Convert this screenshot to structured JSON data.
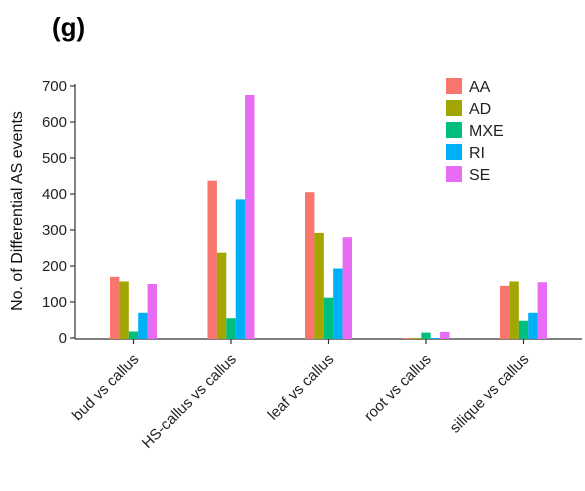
{
  "panel_label": "(g)",
  "chart_data": {
    "type": "bar",
    "title": "",
    "xlabel": "",
    "ylabel": "No. of Differential AS events",
    "ylim": [
      0,
      700
    ],
    "yticks": [
      0,
      100,
      200,
      300,
      400,
      500,
      600,
      700
    ],
    "categories": [
      "bud vs callus",
      "HS-callus vs callus",
      "leaf vs callus",
      "root vs callus",
      "silique vs callus"
    ],
    "series": [
      {
        "name": "AA",
        "color": "#F8766D",
        "values": [
          170,
          437,
          405,
          0,
          145
        ]
      },
      {
        "name": "AD",
        "color": "#A3A500",
        "values": [
          157,
          237,
          292,
          0,
          157
        ]
      },
      {
        "name": "MXE",
        "color": "#00BF7D",
        "values": [
          18,
          55,
          112,
          15,
          48
        ]
      },
      {
        "name": "RI",
        "color": "#00B0F6",
        "values": [
          70,
          385,
          193,
          0,
          70
        ]
      },
      {
        "name": "SE",
        "color": "#E76BF3",
        "values": [
          150,
          675,
          280,
          17,
          155
        ]
      }
    ],
    "legend_position": "top-right",
    "grid": false
  }
}
